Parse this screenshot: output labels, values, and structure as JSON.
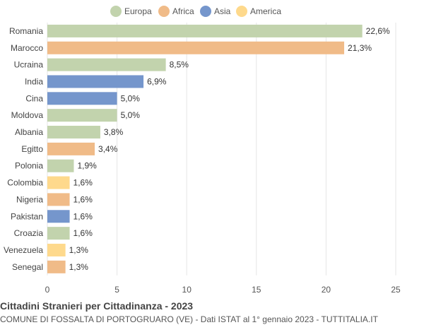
{
  "chart_data": {
    "type": "bar",
    "orientation": "horizontal",
    "title": "Cittadini Stranieri per Cittadinanza - 2023",
    "subtitle": "COMUNE DI FOSSALTA DI PORTOGRUARO (VE) - Dati ISTAT al 1° gennaio 2023 - TUTTITALIA.IT",
    "legend": {
      "position": "top-center",
      "items": [
        {
          "name": "Europa",
          "color": "#c2d3ad"
        },
        {
          "name": "Africa",
          "color": "#f0bb88"
        },
        {
          "name": "Asia",
          "color": "#7596cc"
        },
        {
          "name": "America",
          "color": "#fed98c"
        }
      ]
    },
    "categories": [
      "Romania",
      "Marocco",
      "Ucraina",
      "India",
      "Cina",
      "Moldova",
      "Albania",
      "Egitto",
      "Polonia",
      "Colombia",
      "Nigeria",
      "Pakistan",
      "Croazia",
      "Venezuela",
      "Senegal"
    ],
    "values": [
      22.6,
      21.3,
      8.5,
      6.9,
      5.0,
      5.0,
      3.8,
      3.4,
      1.9,
      1.6,
      1.6,
      1.6,
      1.6,
      1.3,
      1.3
    ],
    "value_labels": [
      "22,6%",
      "21,3%",
      "8,5%",
      "6,9%",
      "5,0%",
      "5,0%",
      "3,8%",
      "3,4%",
      "1,9%",
      "1,6%",
      "1,6%",
      "1,6%",
      "1,6%",
      "1,3%",
      "1,3%"
    ],
    "groups": [
      "Europa",
      "Africa",
      "Europa",
      "Asia",
      "Asia",
      "Europa",
      "Europa",
      "Africa",
      "Europa",
      "America",
      "Africa",
      "Asia",
      "Europa",
      "America",
      "Africa"
    ],
    "xlim": [
      0,
      25
    ],
    "xticks": [
      0,
      5,
      10,
      15,
      20,
      25
    ],
    "grid": true
  }
}
